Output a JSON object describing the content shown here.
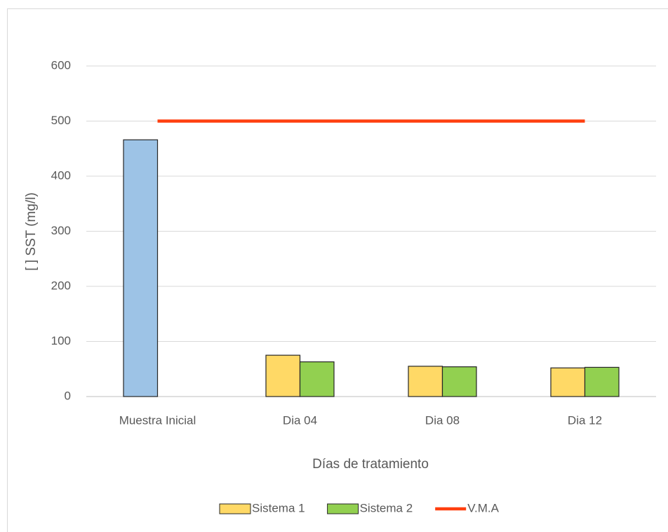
{
  "chart_data": {
    "type": "bar",
    "x_label": "Días de tratamiento",
    "y_label": "[ ] SST (mg/l)",
    "categories": [
      "Muestra Inicial",
      "Dia 04",
      "Dia 08",
      "Dia 12"
    ],
    "series": [
      {
        "name": "Sistema 1",
        "color": "#ffd966",
        "colors": [
          "#9dc3e6",
          "#ffd966",
          "#ffd966",
          "#ffd966"
        ],
        "values": [
          466,
          75,
          55,
          52
        ]
      },
      {
        "name": "Sistema 2",
        "color": "#92d050",
        "values": [
          null,
          63,
          54,
          53
        ]
      },
      {
        "name": "V.M.A",
        "type": "line",
        "color": "#ff3f0f",
        "values": [
          500,
          500,
          500,
          500
        ]
      }
    ],
    "ylim": [
      0,
      600
    ],
    "yticks": [
      0,
      100,
      200,
      300,
      400,
      500,
      600
    ],
    "grid": true,
    "legend": "bottom"
  }
}
